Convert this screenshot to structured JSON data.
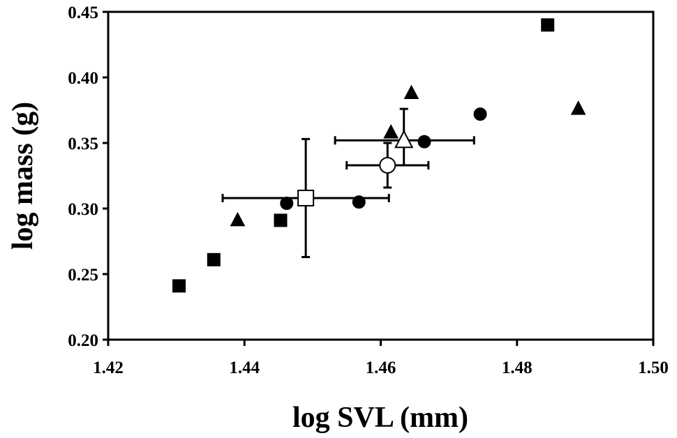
{
  "chart_data": {
    "type": "scatter",
    "title": "",
    "xlabel": "log SVL (mm)",
    "ylabel": "log mass (g)",
    "xlim": [
      1.42,
      1.5
    ],
    "ylim": [
      0.2,
      0.45
    ],
    "x_ticks": [
      "1.42",
      "1.44",
      "1.46",
      "1.48",
      "1.50"
    ],
    "y_ticks": [
      "0.20",
      "0.25",
      "0.30",
      "0.35",
      "0.40",
      "0.45"
    ],
    "grid": false,
    "legend": "none",
    "colors": {
      "filled": "#000000",
      "open_fill": "#ffffff"
    },
    "series": [
      {
        "marker": "square",
        "filled": true,
        "points": [
          {
            "x": 1.4304,
            "y": 0.241
          },
          {
            "x": 1.4355,
            "y": 0.261
          },
          {
            "x": 1.4453,
            "y": 0.291
          },
          {
            "x": 1.4845,
            "y": 0.44
          }
        ]
      },
      {
        "marker": "triangle",
        "filled": true,
        "points": [
          {
            "x": 1.439,
            "y": 0.291
          },
          {
            "x": 1.4615,
            "y": 0.358
          },
          {
            "x": 1.4645,
            "y": 0.388
          },
          {
            "x": 1.489,
            "y": 0.376
          }
        ]
      },
      {
        "marker": "circle",
        "filled": true,
        "points": [
          {
            "x": 1.4462,
            "y": 0.304
          },
          {
            "x": 1.4568,
            "y": 0.305
          },
          {
            "x": 1.4664,
            "y": 0.351
          },
          {
            "x": 1.4746,
            "y": 0.372
          }
        ]
      },
      {
        "marker": "square",
        "filled": false,
        "points": [
          {
            "x": 1.449,
            "y": 0.308,
            "x_err": [
              1.4368,
              1.4612
            ],
            "y_err": [
              0.263,
              0.353
            ]
          }
        ]
      },
      {
        "marker": "circle",
        "filled": false,
        "points": [
          {
            "x": 1.461,
            "y": 0.333,
            "x_err": [
              1.455,
              1.467
            ],
            "y_err": [
              0.316,
              0.35
            ]
          }
        ]
      },
      {
        "marker": "triangle",
        "filled": false,
        "points": [
          {
            "x": 1.4634,
            "y": 0.352,
            "x_err": [
              1.4533,
              1.4737
            ],
            "y_err": [
              0.333,
              0.376
            ]
          }
        ]
      }
    ]
  }
}
